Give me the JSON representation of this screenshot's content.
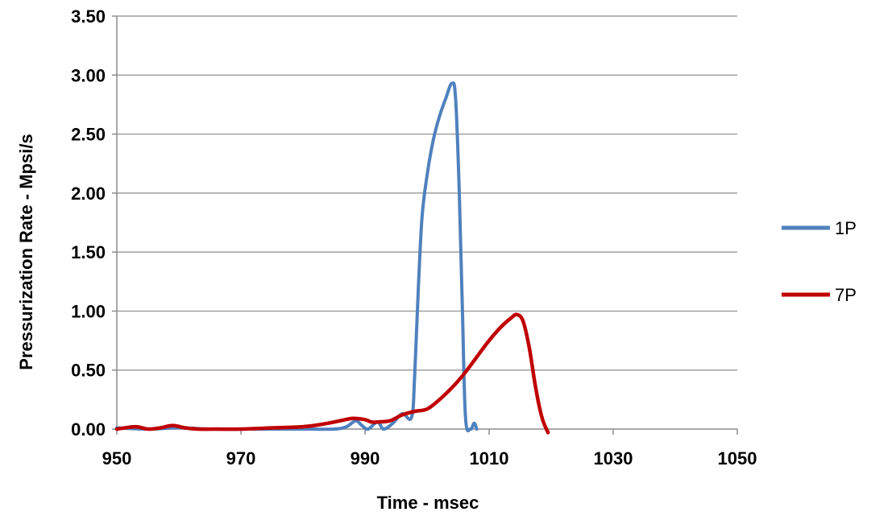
{
  "chart_data": {
    "type": "line",
    "title": "",
    "xlabel": "Time - msec",
    "ylabel": "Pressurization Rate - Mpsi/s",
    "xlim": [
      950,
      1050
    ],
    "ylim": [
      0,
      3.5
    ],
    "x_ticks": [
      "950",
      "970",
      "990",
      "1010",
      "1030",
      "1050"
    ],
    "y_ticks": [
      "0.00",
      "0.50",
      "1.00",
      "1.50",
      "2.00",
      "2.50",
      "3.00",
      "3.50"
    ],
    "grid": "horizontal",
    "legend_position": "right",
    "series": [
      {
        "name": "1P",
        "color": "#4f81bd",
        "x": [
          950,
          955,
          960,
          965,
          970,
          975,
          980,
          985,
          987,
          988.5,
          989.5,
          990.5,
          992,
          993,
          994.5,
          996,
          997.5,
          998,
          998.6,
          999.2,
          1000,
          1001,
          1002,
          1003,
          1004,
          1004.6,
          1005.2,
          1005.7,
          1006.2,
          1007,
          1007.6,
          1008
        ],
        "y": [
          0.01,
          0.0,
          0.01,
          0.0,
          0.0,
          0.0,
          0.0,
          0.0,
          0.02,
          0.07,
          0.03,
          0.0,
          0.06,
          0.0,
          0.05,
          0.13,
          0.1,
          0.45,
          1.2,
          1.8,
          2.15,
          2.45,
          2.65,
          2.8,
          2.93,
          2.8,
          2.0,
          1.0,
          0.1,
          0.0,
          0.05,
          0.0
        ]
      },
      {
        "name": "7P",
        "color": "#c00000",
        "x": [
          950,
          953,
          955,
          957,
          959,
          961,
          963,
          966,
          970,
          975,
          980,
          983,
          986,
          988,
          990,
          991,
          992,
          994,
          996,
          998,
          1000,
          1002,
          1004,
          1006,
          1008,
          1010,
          1012,
          1013.5,
          1014.5,
          1015.5,
          1016.5,
          1017.5,
          1018.5,
          1019.5
        ],
        "y": [
          0.0,
          0.02,
          0.0,
          0.01,
          0.03,
          0.01,
          0.0,
          0.0,
          0.0,
          0.01,
          0.02,
          0.04,
          0.07,
          0.09,
          0.08,
          0.06,
          0.06,
          0.07,
          0.12,
          0.15,
          0.17,
          0.25,
          0.35,
          0.47,
          0.61,
          0.75,
          0.87,
          0.94,
          0.97,
          0.91,
          0.68,
          0.35,
          0.1,
          -0.03
        ]
      }
    ]
  }
}
